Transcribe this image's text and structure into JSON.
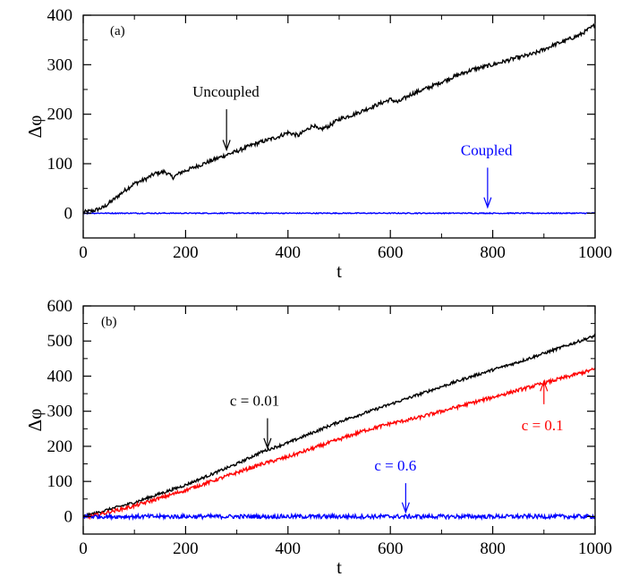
{
  "chart_data": [
    {
      "type": "line",
      "panel_label": "(a)",
      "xlabel": "t",
      "ylabel": "Δφ",
      "xlim": [
        0,
        1000
      ],
      "ylim": [
        -50,
        400
      ],
      "xticks": [
        0,
        200,
        400,
        600,
        800,
        1000
      ],
      "yticks": [
        0,
        100,
        200,
        300,
        400
      ],
      "grid": false,
      "series": [
        {
          "name": "Uncoupled",
          "color": "#000000",
          "noise": 4,
          "x": [
            0,
            20,
            40,
            60,
            80,
            100,
            120,
            140,
            160,
            175,
            190,
            210,
            230,
            260,
            280,
            300,
            330,
            360,
            380,
            400,
            420,
            450,
            460,
            480,
            500,
            530,
            560,
            600,
            615,
            640,
            680,
            720,
            760,
            800,
            840,
            880,
            920,
            950,
            970,
            1000
          ],
          "y": [
            2,
            5,
            12,
            28,
            45,
            60,
            68,
            80,
            84,
            72,
            82,
            90,
            98,
            110,
            118,
            125,
            138,
            148,
            154,
            163,
            157,
            178,
            168,
            176,
            190,
            200,
            213,
            230,
            224,
            240,
            256,
            274,
            290,
            300,
            312,
            322,
            340,
            352,
            360,
            380
          ]
        },
        {
          "name": "Coupled",
          "color": "#0000ff",
          "noise": 1,
          "x": [
            0,
            1000
          ],
          "y": [
            0,
            0
          ]
        }
      ],
      "annotations": [
        {
          "text": "Uncoupled",
          "color": "#000000",
          "arrow_x": 280,
          "arrow_from_y": 210,
          "arrow_to_y": 128
        },
        {
          "text": "Coupled",
          "color": "#0000ff",
          "arrow_x": 790,
          "arrow_from_y": 92,
          "arrow_to_y": 12
        }
      ]
    },
    {
      "type": "line",
      "panel_label": "(b)",
      "xlabel": "t",
      "ylabel": "Δφ",
      "xlim": [
        0,
        1000
      ],
      "ylim": [
        -50,
        600
      ],
      "xticks": [
        0,
        200,
        400,
        600,
        800,
        1000
      ],
      "yticks": [
        0,
        100,
        200,
        300,
        400,
        500,
        600
      ],
      "grid": false,
      "series": [
        {
          "name": "c = 0.01",
          "color": "#000000",
          "noise": 4,
          "x": [
            0,
            100,
            200,
            300,
            350,
            400,
            450,
            500,
            550,
            600,
            650,
            700,
            750,
            800,
            850,
            900,
            950,
            1000
          ],
          "y": [
            0,
            40,
            90,
            150,
            185,
            210,
            240,
            270,
            295,
            320,
            345,
            370,
            395,
            418,
            440,
            465,
            490,
            515
          ]
        },
        {
          "name": "c = 0.1",
          "color": "#ff0000",
          "noise": 5,
          "x": [
            0,
            100,
            200,
            300,
            350,
            400,
            450,
            500,
            550,
            600,
            650,
            700,
            750,
            800,
            850,
            900,
            950,
            1000
          ],
          "y": [
            -5,
            30,
            75,
            125,
            150,
            170,
            195,
            220,
            245,
            265,
            280,
            300,
            320,
            340,
            360,
            380,
            400,
            420
          ]
        },
        {
          "name": "c = 0.6",
          "color": "#0000ff",
          "noise": 6,
          "x": [
            0,
            1000
          ],
          "y": [
            0,
            0
          ]
        }
      ],
      "annotations": [
        {
          "text": "c = 0.01",
          "color": "#000000",
          "arrow_x": 360,
          "arrow_from_y": 280,
          "arrow_to_y": 195
        },
        {
          "text": "c = 0.1",
          "color": "#ff0000",
          "arrow_x": 900,
          "arrow_from_y": 320,
          "arrow_to_y": 385
        },
        {
          "text": "c = 0.6",
          "color": "#0000ff",
          "arrow_x": 630,
          "arrow_from_y": 95,
          "arrow_to_y": 12
        }
      ]
    }
  ]
}
